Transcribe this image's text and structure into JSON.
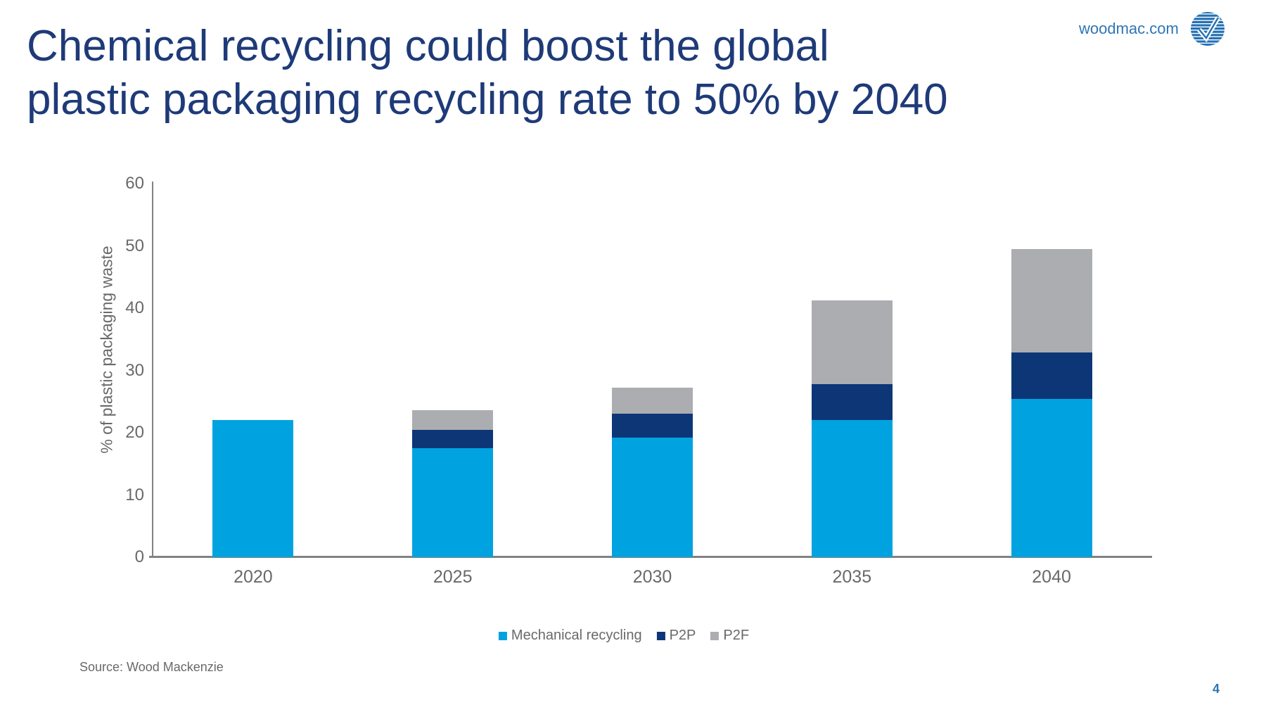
{
  "header": {
    "title_line1": "Chemical recycling could boost the global",
    "title_line2": "plastic packaging recycling rate to 50% by 2040",
    "title_color": "#1E3A78",
    "site_label": "woodmac.com",
    "site_label_color": "#2E75B6"
  },
  "logo": {
    "name": "woodmac-verisk-globe-check-logo",
    "color": "#2470B3"
  },
  "chart_data": {
    "type": "bar",
    "subtype": "stacked",
    "title": "",
    "xlabel": "",
    "ylabel": "% of plastic packaging waste",
    "ylim": [
      0,
      60
    ],
    "ytick_interval": 10,
    "grid": false,
    "legend_position": "bottom",
    "categories": [
      "2020",
      "2025",
      "2030",
      "2035",
      "2040"
    ],
    "series": [
      {
        "name": "Mechanical recycling",
        "color": "#00A3E0",
        "values": [
          22,
          17.5,
          19.2,
          22,
          25.4
        ]
      },
      {
        "name": "P2P",
        "color": "#0D3677",
        "values": [
          0,
          3,
          3.9,
          5.8,
          7.5
        ]
      },
      {
        "name": "P2F",
        "color": "#ABADB0",
        "values": [
          0,
          3.1,
          4.1,
          13.4,
          16.6
        ]
      }
    ],
    "axis_color": "#828282",
    "tick_label_color": "#696969",
    "legend_text_color": "#696969"
  },
  "footer": {
    "source_note": "Source: Wood Mackenzie",
    "page_number": "4"
  }
}
